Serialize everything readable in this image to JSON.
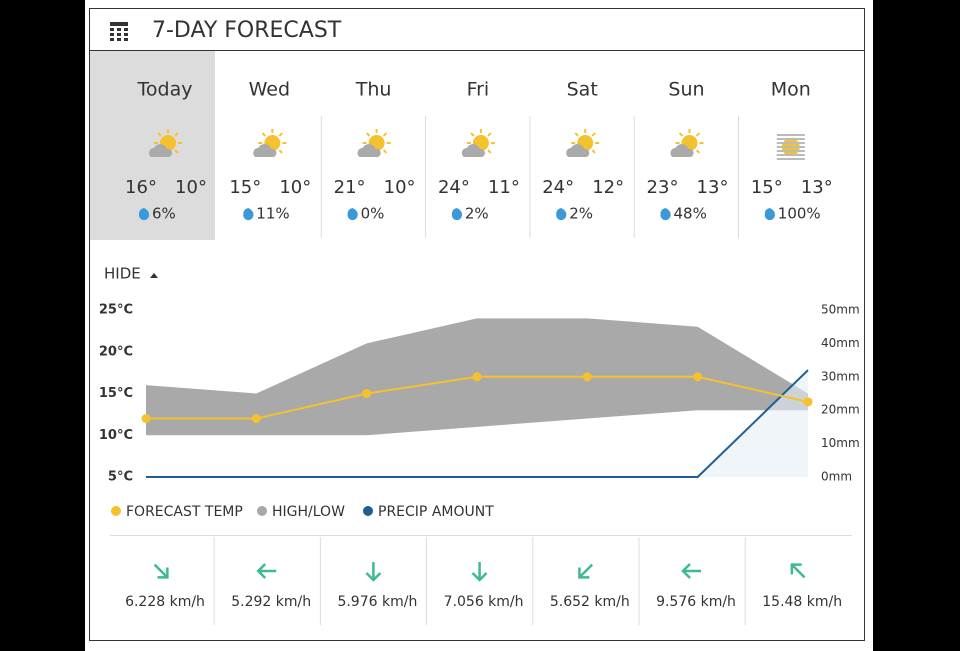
{
  "header": {
    "title": "7-DAY FORECAST"
  },
  "days": [
    {
      "name": "Today",
      "high": "16°",
      "low": "10°",
      "precip": "6%"
    },
    {
      "name": "Wed",
      "high": "15°",
      "low": "10°",
      "precip": "11%"
    },
    {
      "name": "Thu",
      "high": "21°",
      "low": "10°",
      "precip": "0%"
    },
    {
      "name": "Fri",
      "high": "24°",
      "low": "11°",
      "precip": "2%"
    },
    {
      "name": "Sat",
      "high": "24°",
      "low": "12°",
      "precip": "2%"
    },
    {
      "name": "Sun",
      "high": "23°",
      "low": "13°",
      "precip": "48%"
    },
    {
      "name": "Mon",
      "high": "15°",
      "low": "13°",
      "precip": "100%"
    }
  ],
  "toggle": "HIDE",
  "chart_data": {
    "type": "line",
    "series": [
      {
        "name": "FORECAST TEMP",
        "color": "#f4c12f",
        "values": [
          12,
          12,
          15,
          17,
          17,
          17,
          14
        ]
      },
      {
        "name": "HIGH/LOW",
        "color": "#a9a9a9",
        "high": [
          16,
          15,
          21,
          24,
          24,
          23,
          15
        ],
        "low": [
          10,
          10,
          10,
          11,
          12,
          13,
          13
        ]
      },
      {
        "name": "PRECIP AMOUNT",
        "color": "#1f5f97",
        "axis": "y2",
        "values": [
          0,
          0,
          0,
          0,
          0,
          0,
          32
        ]
      }
    ],
    "ylim": [
      5,
      25
    ],
    "yticks": [
      {
        "value": 5,
        "label": "5°C"
      },
      {
        "value": 10,
        "label": "10°C"
      },
      {
        "value": 15,
        "label": "15°C"
      },
      {
        "value": 20,
        "label": "20°C"
      },
      {
        "value": 25,
        "label": "25°C"
      }
    ],
    "y2lim": [
      0,
      50
    ],
    "y2ticks": [
      {
        "value": 0,
        "label": "0mm"
      },
      {
        "value": 10,
        "label": "10mm"
      },
      {
        "value": 20,
        "label": "20mm"
      },
      {
        "value": 30,
        "label": "30mm"
      },
      {
        "value": 40,
        "label": "40mm"
      },
      {
        "value": 50,
        "label": "50mm"
      }
    ]
  },
  "winds": [
    "6.228 km/h",
    "5.292 km/h",
    "5.976 km/h",
    "7.056 km/h",
    "5.652 km/h",
    "9.576 km/h",
    "15.48 km/h"
  ]
}
